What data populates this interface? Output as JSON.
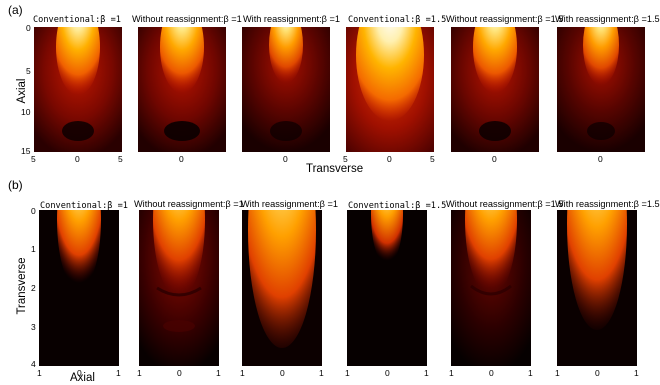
{
  "panel_labels": {
    "a": "(a)",
    "b": "(b)"
  },
  "row_a": {
    "titles": [
      "Conventional:β =1",
      "Without reassignment:β =1",
      "With reassignment:β =1",
      "Conventional:β =1.5",
      "Without reassignment:β =1.5",
      "With reassignment:β =1.5"
    ],
    "y_axis_label": "Axial",
    "x_axis_label": "Transverse",
    "y_ticks": [
      "0",
      "5",
      "10",
      "15"
    ],
    "x_ticks": [
      "5",
      "0",
      "5"
    ]
  },
  "row_b": {
    "titles": [
      "Conventional:β =1",
      "Without reassignment:β =1",
      "With reassignment:β =1",
      "Conventional:β =1.5",
      "Without reassignment:β =1.5",
      "With reassignment:β =1.5"
    ],
    "y_axis_label": "Transverse",
    "x_axis_label": "Axial",
    "y_ticks": [
      "0",
      "1",
      "2",
      "3",
      "4"
    ],
    "x_ticks": [
      "1",
      "0",
      "1"
    ]
  },
  "colormap": [
    "#000000",
    "#3a0000",
    "#8a0a00",
    "#d22a00",
    "#f56a00",
    "#ffb000",
    "#ffe680",
    "#ffffff"
  ]
}
